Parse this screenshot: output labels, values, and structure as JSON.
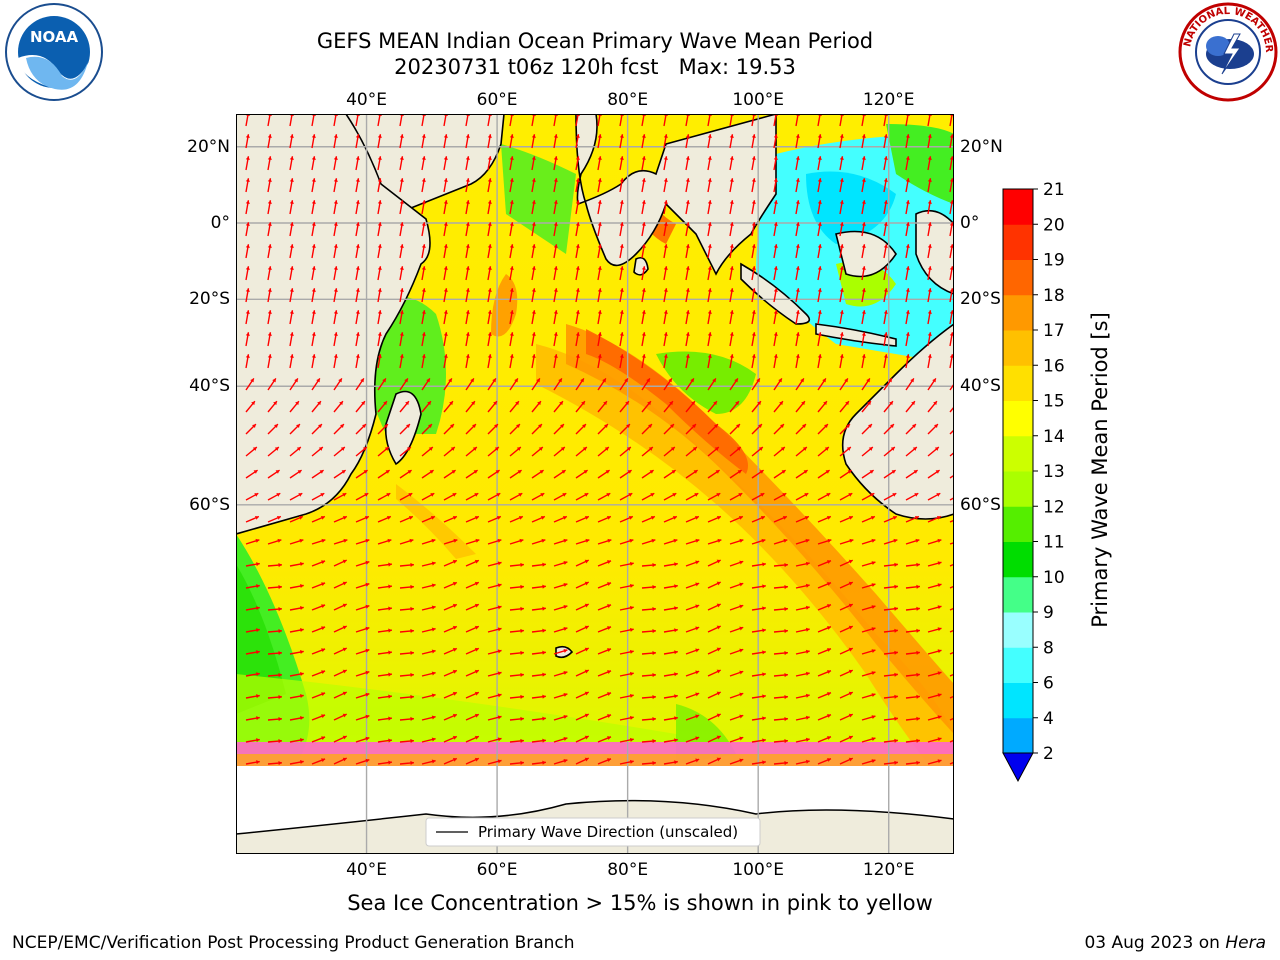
{
  "header": {
    "title": "GEFS MEAN Indian Ocean Primary Wave Mean Period",
    "subtitle": "20230731 t06z 120h fcst   Max: 19.53"
  },
  "logos": {
    "left": {
      "text": "NOAA",
      "icon": "noaa-logo"
    },
    "right": {
      "text": "NATIONAL WEATHER SERVICE",
      "icon": "nws-logo"
    }
  },
  "map": {
    "lon_ticks": [
      "40°E",
      "60°E",
      "80°E",
      "100°E",
      "120°E"
    ],
    "lon_values": [
      40,
      60,
      80,
      100,
      120
    ],
    "lat_ticks": [
      "20°N",
      "0°",
      "20°S",
      "40°S",
      "60°S"
    ],
    "lat_values": [
      20,
      0,
      -20,
      -40,
      -60
    ],
    "extent": {
      "lon": [
        20,
        130
      ],
      "lat": [
        -84,
        28
      ]
    },
    "legend_label": "Primary Wave Direction (unscaled)",
    "vector_color": "#ff0000",
    "land_color": "#efecdc"
  },
  "colorbar": {
    "label": "Primary Wave Mean Period [s]",
    "ticks": [
      "2",
      "4",
      "6",
      "8",
      "9",
      "10",
      "11",
      "12",
      "13",
      "14",
      "15",
      "16",
      "17",
      "18",
      "19",
      "20",
      "21"
    ],
    "colors": [
      "#0055ff",
      "#00aaff",
      "#00e5ff",
      "#44ffff",
      "#99ffff",
      "#44ff88",
      "#00dd00",
      "#55ee00",
      "#aaff00",
      "#ccff00",
      "#ffff00",
      "#ffe000",
      "#ffc000",
      "#ff9900",
      "#ff6600",
      "#ff3300",
      "#ff0000"
    ],
    "under_color": "#0000ee"
  },
  "notes": {
    "sea_ice": "Sea Ice Concentration > 15% is shown in pink to yellow"
  },
  "footer": {
    "left": "NCEP/EMC/Verification Post Processing Product Generation Branch",
    "date": "03 Aug 2023 on ",
    "machine": "Hera"
  }
}
